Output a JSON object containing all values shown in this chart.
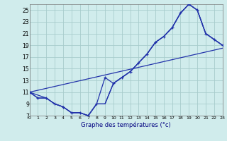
{
  "xlabel": "Graphe des températures (°c)",
  "xlim": [
    0,
    23
  ],
  "ylim": [
    7,
    26
  ],
  "yticks": [
    7,
    9,
    11,
    13,
    15,
    17,
    19,
    21,
    23,
    25
  ],
  "xticks": [
    0,
    1,
    2,
    3,
    4,
    5,
    6,
    7,
    8,
    9,
    10,
    11,
    12,
    13,
    14,
    15,
    16,
    17,
    18,
    19,
    20,
    21,
    22,
    23
  ],
  "bg_color": "#d0ecec",
  "grid_color": "#a8cccc",
  "line_color": "#2233aa",
  "line_marker_color": "#2233aa",
  "line1_x": [
    0,
    1,
    2,
    3,
    4,
    5,
    6,
    7,
    8,
    9,
    10,
    11,
    12,
    13,
    14,
    15,
    16,
    17,
    18,
    19,
    20,
    21,
    22,
    23
  ],
  "line1_y": [
    11,
    10,
    10,
    9,
    8.5,
    7.5,
    7.5,
    7,
    9,
    13.5,
    12.5,
    13.5,
    14.5,
    16,
    17.5,
    19.5,
    20.5,
    22,
    24.5,
    26,
    25,
    21,
    20,
    19
  ],
  "line2_x": [
    0,
    1,
    2,
    3,
    4,
    5,
    6,
    7,
    8,
    9,
    10,
    11,
    12,
    13,
    14,
    15,
    16,
    17,
    18,
    19,
    20,
    21,
    22,
    23
  ],
  "line2_y": [
    11,
    10,
    10,
    9,
    8.5,
    7.5,
    7.5,
    7,
    9,
    9,
    12.5,
    13.5,
    14.5,
    16,
    17.5,
    19.5,
    20.5,
    22,
    24.5,
    26,
    25,
    21,
    20,
    19
  ],
  "line3_x": [
    0,
    2,
    3,
    4,
    5,
    6,
    7,
    8,
    9,
    10,
    11,
    12,
    13,
    14,
    15,
    16,
    17,
    18,
    19,
    20,
    21,
    22,
    23
  ],
  "line3_y": [
    11,
    10,
    9,
    8.5,
    7.5,
    7.5,
    7,
    9,
    9,
    12.5,
    13.5,
    14.5,
    16,
    17.5,
    19.5,
    20.5,
    22,
    24.5,
    26,
    25,
    21,
    20,
    19
  ],
  "line4_x": [
    0,
    23
  ],
  "line4_y": [
    11,
    18.5
  ]
}
